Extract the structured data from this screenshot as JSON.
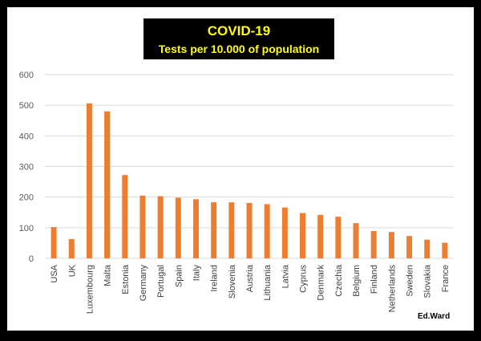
{
  "header": {
    "title": "COVID-19",
    "subtitle": "Tests per 10.000 of population"
  },
  "footer": {
    "author": "Ed.Ward"
  },
  "colors": {
    "bar": "#ED7D31",
    "title_background": "#000000",
    "title_text": "#FFFF00",
    "gridline": "#D9D9D9",
    "frame": "#000000"
  },
  "chart_data": {
    "type": "bar",
    "title": "COVID-19",
    "subtitle": "Tests per 10.000 of population",
    "xlabel": "",
    "ylabel": "",
    "ylim": [
      0,
      600
    ],
    "yticks": [
      0,
      100,
      200,
      300,
      400,
      500,
      600
    ],
    "grid": true,
    "legend": "none",
    "categories": [
      "USA",
      "UK",
      "Luxembourg",
      "Malta",
      "Estonia",
      "Germany",
      "Portugal",
      "Spain",
      "Italy",
      "Ireland",
      "Slovenia",
      "Austria",
      "Lithuania",
      "Latvia",
      "Cyprus",
      "Denmark",
      "Czechia",
      "Belgium",
      "Finland",
      "Netherlands",
      "Sweden",
      "Slovakia",
      "France"
    ],
    "values": [
      102,
      63,
      506,
      480,
      272,
      205,
      203,
      198,
      193,
      183,
      183,
      181,
      177,
      166,
      148,
      142,
      136,
      115,
      89,
      86,
      73,
      61,
      51
    ]
  }
}
